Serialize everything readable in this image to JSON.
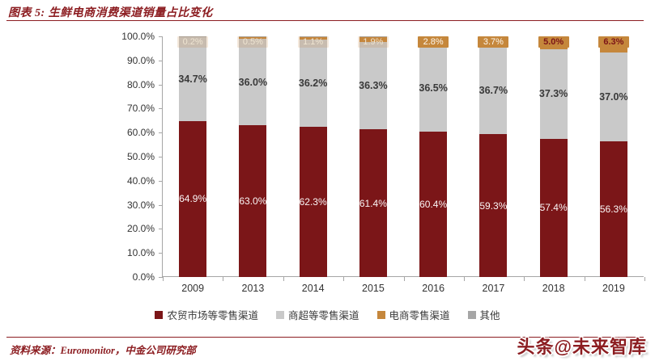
{
  "header": {
    "title": "图表 5: 生鲜电商消费渠道销量占比变化"
  },
  "source": {
    "text": "资料来源：Euromonitor，中金公司研究部"
  },
  "watermark": {
    "text": "头条@未来智库"
  },
  "colors": {
    "accent_maroon": "#8C1D21",
    "bar_dark_red": "#7B1618",
    "bar_gray": "#C9C9C9",
    "bar_orange": "#C5873C",
    "bar_other_gray": "#A6A6A6",
    "axis_gray": "#A6A6A6",
    "label_dark": "#3A3A3A"
  },
  "chart_data": {
    "type": "bar",
    "stacked": true,
    "title": "生鲜电商消费渠道销量占比变化",
    "xlabel": "",
    "ylabel": "",
    "ylim": [
      0,
      100
    ],
    "grid": false,
    "legend_position": "bottom",
    "categories": [
      "2009",
      "2013",
      "2014",
      "2015",
      "2016",
      "2017",
      "2018",
      "2019"
    ],
    "yticks": [
      "100.0%",
      "90.0%",
      "80.0%",
      "70.0%",
      "60.0%",
      "50.0%",
      "40.0%",
      "30.0%",
      "20.0%",
      "10.0%",
      "0.0%"
    ],
    "series": [
      {
        "name": "农贸市场等零售渠道",
        "color": "#7B1618",
        "labeled": true,
        "values": [
          64.9,
          63.0,
          62.3,
          61.4,
          60.4,
          59.3,
          57.4,
          56.3
        ]
      },
      {
        "name": "商超等零售渠道",
        "color": "#C9C9C9",
        "labeled": true,
        "values": [
          34.7,
          36.0,
          36.2,
          36.3,
          36.5,
          36.7,
          37.3,
          37.0
        ]
      },
      {
        "name": "电商零售渠道",
        "color": "#C5873C",
        "labeled": true,
        "values": [
          0.2,
          0.5,
          1.1,
          1.9,
          2.8,
          3.7,
          5.0,
          6.3
        ]
      },
      {
        "name": "其他",
        "color": "#A6A6A6",
        "labeled": false,
        "values": [
          0.2,
          0.5,
          0.4,
          0.4,
          0.3,
          0.3,
          0.3,
          0.4
        ]
      }
    ]
  }
}
